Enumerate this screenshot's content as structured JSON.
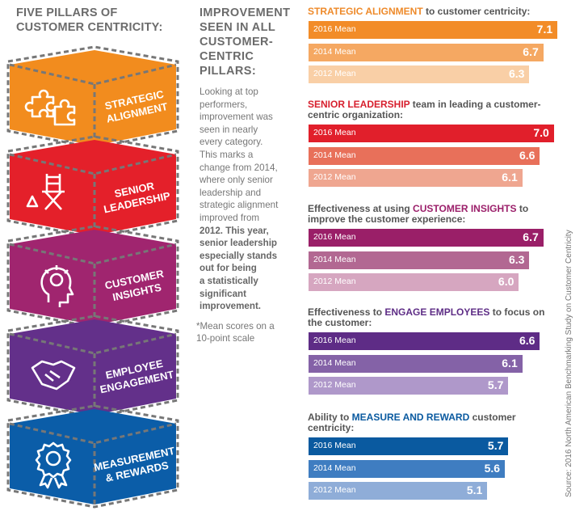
{
  "left_title": [
    "FIVE PILLARS OF",
    "CUSTOMER CENTRICITY:"
  ],
  "pillars": [
    {
      "label": [
        "STRATEGIC",
        "ALIGNMENT"
      ],
      "icon": "puzzle-icon",
      "color": "#F28C1E"
    },
    {
      "label": [
        "SENIOR",
        "LEADERSHIP"
      ],
      "icon": "directors-chair-icon",
      "color": "#E4202A"
    },
    {
      "label": [
        "CUSTOMER",
        "INSIGHTS"
      ],
      "icon": "head-lightbulb-icon",
      "color": "#A0256F"
    },
    {
      "label": [
        "EMPLOYEE",
        "ENGAGEMENT"
      ],
      "icon": "handshake-icon",
      "color": "#63308A"
    },
    {
      "label": [
        "MEASUREMENT",
        "& REWARDS"
      ],
      "icon": "award-ribbon-icon",
      "color": "#0B5DA8"
    }
  ],
  "middle": {
    "title": [
      "IMPROVEMENT",
      "SEEN IN ALL",
      "CUSTOMER-",
      "CENTRIC",
      "PILLARS:"
    ],
    "body": [
      "Looking at top",
      "performers,",
      "improvement was",
      "seen in nearly",
      "every category.",
      "This marks a",
      "change from 2014,",
      "where only senior",
      "leadership and",
      "strategic alignment",
      "improved from",
      "2012. This year,",
      "senior leadership",
      "especially stands",
      "out for being",
      "a statistically",
      "significant",
      "improvement."
    ],
    "note": [
      "*Mean scores on a",
      "10-point scale"
    ]
  },
  "source": "Source: 2016 North American Benchmarking Study on Customer Centricity",
  "chart_data": {
    "type": "bar",
    "orientation": "horizontal",
    "categories": [
      "2016 Mean",
      "2014 Mean",
      "2012 Mean"
    ],
    "xlim": [
      0,
      10
    ],
    "sections": [
      {
        "pre": "",
        "highlight": "STRATEGIC ALIGNMENT",
        "post": " to customer centricity:",
        "color": "#EE8A2A",
        "bar_colors": [
          "#F28C28",
          "#F5A862",
          "#F9CFA6"
        ],
        "values": [
          7.1,
          6.7,
          6.3
        ]
      },
      {
        "pre": "",
        "highlight": "SENIOR LEADERSHIP",
        "post": " team in leading a customer-centric organization:",
        "color": "#D7202E",
        "bar_colors": [
          "#E11F2B",
          "#E8705A",
          "#EFA690"
        ],
        "values": [
          7.0,
          6.6,
          6.1
        ]
      },
      {
        "pre": "Effectiveness at using ",
        "highlight": "CUSTOMER INSIGHTS",
        "post": " to improve the customer experience:",
        "color": "#9B1F6A",
        "bar_colors": [
          "#9A1F68",
          "#B26892",
          "#D6A6C0"
        ],
        "values": [
          6.7,
          6.3,
          6.0
        ]
      },
      {
        "pre": "Effectiveness to ",
        "highlight": "ENGAGE EMPLOYEES",
        "post": " to focus on the customer:",
        "color": "#5E2D86",
        "bar_colors": [
          "#5E2C86",
          "#8462A7",
          "#AF98CA"
        ],
        "values": [
          6.6,
          6.1,
          5.7
        ]
      },
      {
        "pre": "Ability to ",
        "highlight": "MEASURE AND REWARD",
        "post": " customer centricity:",
        "color": "#0A5AA0",
        "bar_colors": [
          "#0A5AA0",
          "#3F7DC1",
          "#8FADD8"
        ],
        "values": [
          5.7,
          5.6,
          5.1
        ]
      }
    ]
  }
}
